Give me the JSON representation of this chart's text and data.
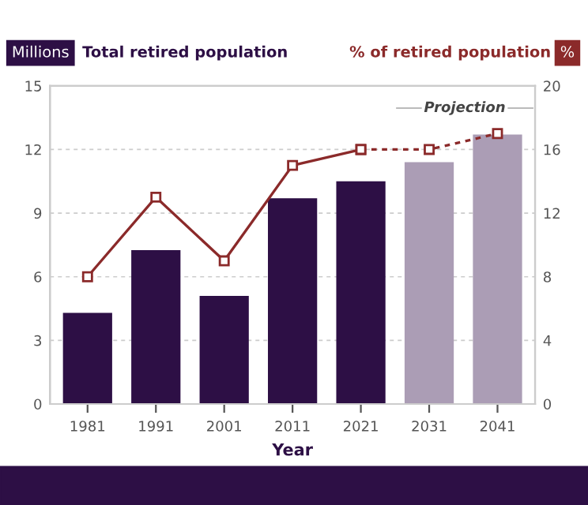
{
  "chart_data": {
    "type": "bar",
    "categories": [
      "1981",
      "1991",
      "2001",
      "2011",
      "2021",
      "2031",
      "2041"
    ],
    "series": [
      {
        "name": "Total retired population",
        "color": "#2d0f45",
        "colors": [
          "#2d0f45",
          "#2d0f45",
          "#2d0f45",
          "#2d0f45",
          "#2d0f45",
          "#ab9db5",
          "#ab9db5"
        ],
        "values": [
          4.3,
          7.25,
          5.1,
          9.7,
          10.5,
          11.4,
          12.7
        ]
      },
      {
        "name": "% of retired population",
        "type": "line",
        "axis": "y2",
        "color": "#8b2a2a",
        "marker": "square",
        "line_style": "solid",
        "values": [
          8,
          13,
          9,
          15,
          16,
          null,
          null
        ]
      },
      {
        "type": "line",
        "axis": "y2",
        "color": "#8b2a2a",
        "marker": "square",
        "line_style": "dashed",
        "values": [
          null,
          null,
          null,
          null,
          16,
          16,
          17
        ]
      }
    ],
    "ylabel": "Millions",
    "y2label": "%",
    "xlabel": "Year",
    "ylim": [
      0,
      15
    ],
    "yticks": [
      0,
      3,
      6,
      9,
      12,
      15
    ],
    "y2lim": [
      0,
      20
    ],
    "y2ticks": [
      0,
      4,
      8,
      12,
      16,
      20
    ],
    "annotations": [
      "Projection"
    ],
    "grid": "y",
    "legend": "top"
  }
}
